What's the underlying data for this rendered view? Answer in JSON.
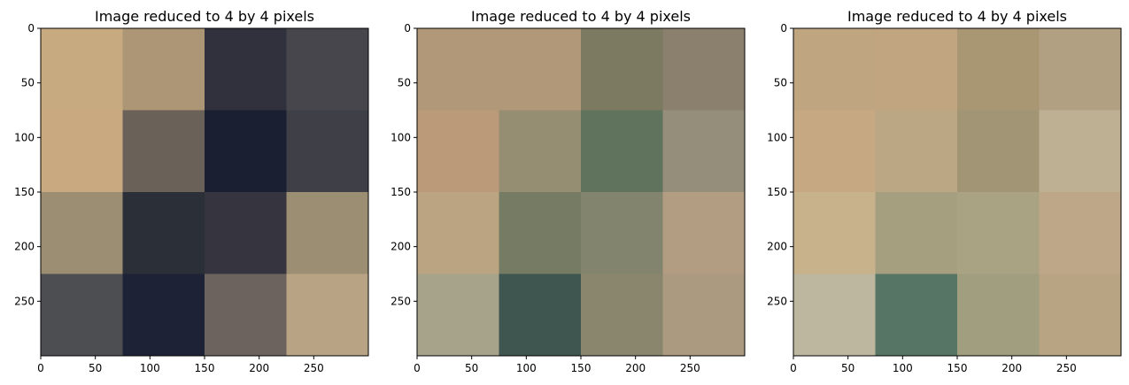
{
  "chart_data": [
    {
      "type": "heatmap",
      "title": "Image reduced to 4 by 4 pixels",
      "x_ticks": [
        0,
        50,
        100,
        150,
        200,
        250
      ],
      "y_ticks": [
        0,
        50,
        100,
        150,
        200,
        250
      ],
      "xlim": [
        0,
        300
      ],
      "ylim": [
        300,
        0
      ],
      "grid": false,
      "cell_size": 75,
      "pixels": [
        [
          "#c8aa80",
          "#ad9676",
          "#30313d",
          "#47464c"
        ],
        [
          "#c9aa80",
          "#6a6158",
          "#1b1f32",
          "#3f4047"
        ],
        [
          "#9c8e72",
          "#2b2f38",
          "#35343f",
          "#9c8e72"
        ],
        [
          "#4d4e51",
          "#1e2236",
          "#6c635e",
          "#b8a384"
        ]
      ]
    },
    {
      "type": "heatmap",
      "title": "Image reduced to 4 by 4 pixels",
      "x_ticks": [
        0,
        50,
        100,
        150,
        200,
        250
      ],
      "y_ticks": [
        0,
        50,
        100,
        150,
        200,
        250
      ],
      "xlim": [
        0,
        300
      ],
      "ylim": [
        300,
        0
      ],
      "grid": false,
      "cell_size": 75,
      "pixels": [
        [
          "#b19878",
          "#b09878",
          "#7c7a60",
          "#8b806d"
        ],
        [
          "#ba9a78",
          "#958e72",
          "#5f735d",
          "#948e7b"
        ],
        [
          "#baa482",
          "#767b64",
          "#82846e",
          "#b29c82"
        ],
        [
          "#a7a38b",
          "#3f5550",
          "#8a866e",
          "#ab9a80"
        ]
      ]
    },
    {
      "type": "heatmap",
      "title": "Image reduced to 4 by 4 pixels",
      "x_ticks": [
        0,
        50,
        100,
        150,
        200,
        250
      ],
      "y_ticks": [
        0,
        50,
        100,
        150,
        200,
        250
      ],
      "xlim": [
        0,
        300
      ],
      "ylim": [
        300,
        0
      ],
      "grid": false,
      "cell_size": 75,
      "pixels": [
        [
          "#c0a581",
          "#c1a480",
          "#a99673",
          "#b2a083"
        ],
        [
          "#c6a882",
          "#bca784",
          "#a29575",
          "#bdb093"
        ],
        [
          "#c8b28c",
          "#a69f7f",
          "#a9a283",
          "#bea788"
        ],
        [
          "#beb79f",
          "#567565",
          "#a09e7f",
          "#b8a383"
        ]
      ]
    }
  ]
}
